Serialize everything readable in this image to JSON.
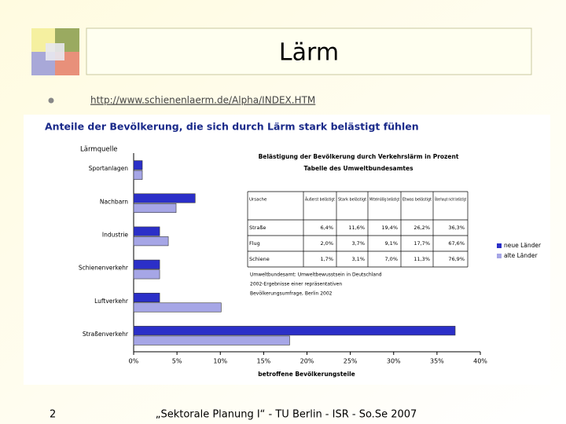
{
  "slide": {
    "title": "Lärm",
    "link": "http://www.schienenlaerm.de/Alpha/INDEX.HTM",
    "page_number": "2",
    "footer": "„Sektorale Planung I“  -  TU Berlin -  ISR -  So.Se 2007"
  },
  "chart_data": {
    "type": "bar",
    "orientation": "horizontal",
    "title": "Anteile der Bevölkerung, die sich durch Lärm stark belästigt fühlen",
    "y_label": "Lärmquelle",
    "x_label": "betroffene Bevölkerungsteile",
    "categories": [
      "Sportanlagen",
      "Nachbarn",
      "Industrie",
      "Schienenverkehr",
      "Luftverkehr",
      "Straßenverkehr"
    ],
    "series": [
      {
        "name": "neue Länder",
        "color": "#2b2fc8",
        "values": [
          1.0,
          7.1,
          3.0,
          3.0,
          3.0,
          37.1
        ]
      },
      {
        "name": "alte Länder",
        "color": "#a6a6e6",
        "values": [
          1.0,
          4.9,
          4.0,
          3.0,
          10.1,
          18.0
        ]
      }
    ],
    "xlim": [
      0,
      40
    ],
    "xticks": [
      {
        "value": 0,
        "label": "0%"
      },
      {
        "value": 5,
        "label": "5%"
      },
      {
        "value": 10,
        "label": "10%"
      },
      {
        "value": 15,
        "label": "15%"
      },
      {
        "value": 20,
        "label": "20%"
      },
      {
        "value": 25,
        "label": "25%"
      },
      {
        "value": 30,
        "label": "30%"
      },
      {
        "value": 35,
        "label": "35%"
      },
      {
        "value": 40,
        "label": "40%"
      }
    ],
    "grid": false,
    "legend": "right",
    "inset_table": {
      "title": "Belästigung der Bevölkerung durch Verkehrslärm in Prozent",
      "subtitle": "Tabelle des Umweltbundesamtes",
      "columns": [
        "Ursache",
        "Äußerst belästigt",
        "Stark belästigt",
        "Mittelmäßig belästigt",
        "Etwas belästigt",
        "Überhaupt nicht belästigt"
      ],
      "rows": [
        [
          "Straße",
          "6,4%",
          "11,6%",
          "19,4%",
          "26,2%",
          "36,3%"
        ],
        [
          "Flug",
          "2,0%",
          "3,7%",
          "9,1%",
          "17,7%",
          "67,6%"
        ],
        [
          "Schiene",
          "1,7%",
          "3,1%",
          "7,0%",
          "11,3%",
          "76,9%"
        ]
      ],
      "source": [
        "Umweltbundesamt: Umweltbewusstsein in Deutschland",
        "2002-Ergebnisse einer repräsentativen",
        "Bevölkerungsumfrage, Berlin 2002"
      ]
    }
  }
}
